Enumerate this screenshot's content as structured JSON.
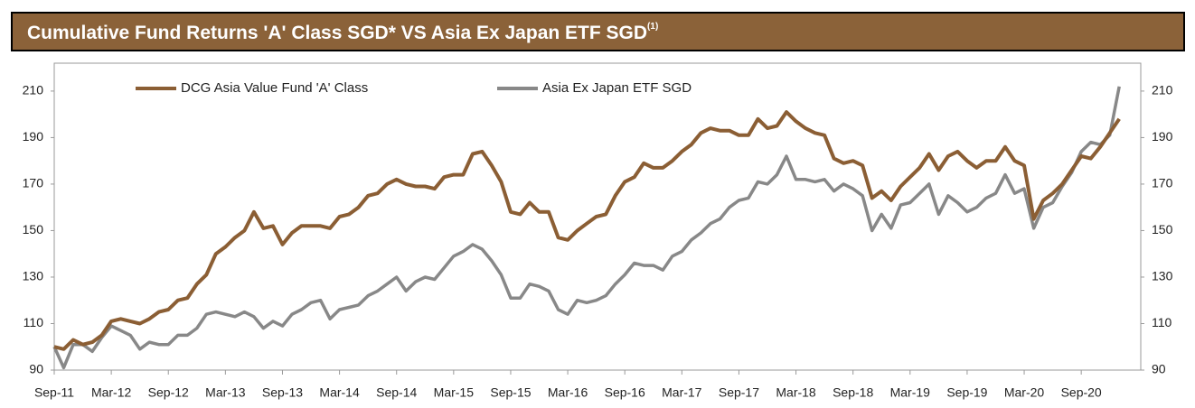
{
  "chart_data": {
    "type": "line",
    "title": "Cumulative Fund Returns 'A' Class SGD* VS Asia Ex Japan ETF SGD",
    "title_note": "(1)",
    "categories": [
      "Sep-11",
      null,
      null,
      null,
      null,
      null,
      "Mar-12",
      null,
      null,
      null,
      null,
      null,
      "Sep-12",
      null,
      null,
      null,
      null,
      null,
      "Mar-13",
      null,
      null,
      null,
      null,
      null,
      "Sep-13",
      null,
      null,
      null,
      null,
      null,
      "Mar-14",
      null,
      null,
      null,
      null,
      null,
      "Sep-14",
      null,
      null,
      null,
      null,
      null,
      "Mar-15",
      null,
      null,
      null,
      null,
      null,
      "Sep-15",
      null,
      null,
      null,
      null,
      null,
      "Mar-16",
      null,
      null,
      null,
      null,
      null,
      "Sep-16",
      null,
      null,
      null,
      null,
      null,
      "Mar-17",
      null,
      null,
      null,
      null,
      null,
      "Sep-17",
      null,
      null,
      null,
      null,
      null,
      "Mar-18",
      null,
      null,
      null,
      null,
      null,
      "Sep-18",
      null,
      null,
      null,
      null,
      null,
      "Mar-19",
      null,
      null,
      null,
      null,
      null,
      "Sep-19",
      null,
      null,
      null,
      null,
      null,
      "Mar-20",
      null,
      null,
      null,
      null,
      null,
      "Sep-20",
      null,
      null,
      null,
      null
    ],
    "series": [
      {
        "name": "DCG Asia Value Fund 'A' Class",
        "color": "#8b5e34",
        "values": [
          100,
          99,
          103,
          101,
          102,
          105,
          111,
          112,
          111,
          110,
          112,
          115,
          116,
          120,
          121,
          127,
          131,
          140,
          143,
          147,
          150,
          158,
          151,
          152,
          144,
          149,
          152,
          152,
          152,
          151,
          156,
          157,
          160,
          165,
          166,
          170,
          172,
          170,
          169,
          169,
          168,
          173,
          174,
          174,
          183,
          184,
          178,
          171,
          158,
          157,
          162,
          158,
          158,
          147,
          146,
          150,
          153,
          156,
          157,
          165,
          171,
          173,
          179,
          177,
          177,
          180,
          184,
          187,
          192,
          194,
          193,
          193,
          191,
          191,
          198,
          194,
          195,
          201,
          197,
          194,
          192,
          191,
          181,
          179,
          180,
          178,
          164,
          167,
          163,
          169,
          173,
          177,
          183,
          176,
          182,
          184,
          180,
          177,
          180,
          180,
          186,
          180,
          178,
          155,
          163,
          166,
          170,
          176,
          182,
          181,
          186,
          192,
          198
        ]
      },
      {
        "name": "Asia Ex Japan ETF SGD",
        "color": "#888888",
        "values": [
          100,
          91,
          101,
          101,
          98,
          104,
          109,
          107,
          105,
          99,
          102,
          101,
          101,
          105,
          105,
          108,
          114,
          115,
          114,
          113,
          115,
          113,
          108,
          111,
          109,
          114,
          116,
          119,
          120,
          112,
          116,
          117,
          118,
          122,
          124,
          127,
          130,
          124,
          128,
          130,
          129,
          134,
          139,
          141,
          144,
          142,
          137,
          131,
          121,
          121,
          127,
          126,
          124,
          116,
          114,
          120,
          119,
          120,
          122,
          127,
          131,
          136,
          135,
          135,
          133,
          139,
          141,
          146,
          149,
          153,
          155,
          160,
          163,
          164,
          171,
          170,
          174,
          182,
          172,
          172,
          171,
          172,
          167,
          170,
          168,
          165,
          150,
          157,
          151,
          161,
          162,
          166,
          170,
          157,
          165,
          162,
          158,
          160,
          164,
          166,
          174,
          166,
          168,
          151,
          160,
          162,
          169,
          175,
          184,
          188,
          187,
          191,
          212
        ]
      }
    ],
    "ylim": [
      90,
      222
    ],
    "yticks": [
      90,
      110,
      130,
      150,
      170,
      190,
      210
    ],
    "grid": false
  }
}
